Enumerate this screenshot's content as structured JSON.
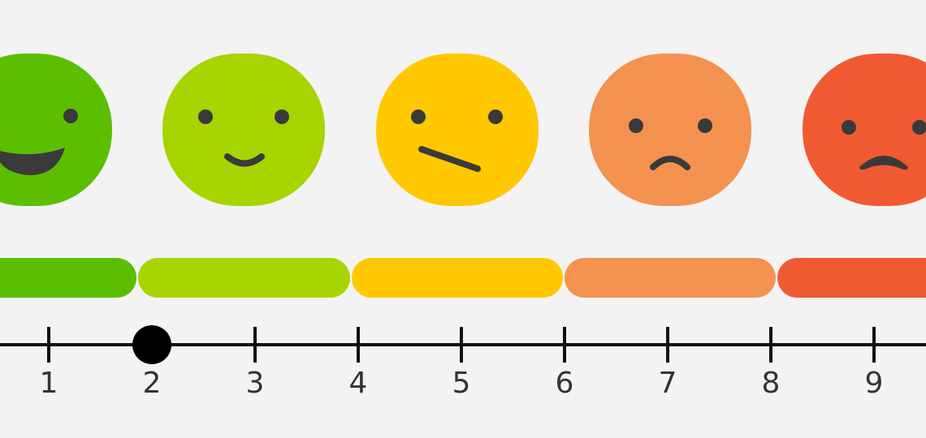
{
  "scale": {
    "ticks": [
      "1",
      "2",
      "3",
      "4",
      "5",
      "6",
      "7",
      "8",
      "9"
    ],
    "selected": 2
  }
}
